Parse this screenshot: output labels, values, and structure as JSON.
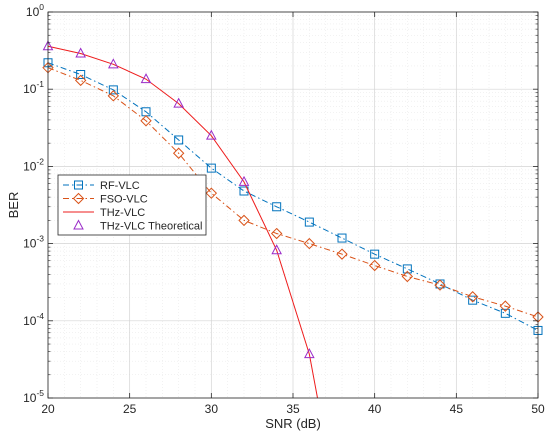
{
  "chart_data": {
    "type": "line",
    "xlabel": "SNR (dB)",
    "ylabel": "BER",
    "xlim": [
      20,
      50
    ],
    "ylim": [
      1e-05,
      1
    ],
    "yscale": "log",
    "grid": true,
    "legend_position": "left",
    "x_ticks": [
      "20",
      "25",
      "30",
      "35",
      "40",
      "45",
      "50"
    ],
    "y_ticks": [
      {
        "base": "10",
        "exp": "0"
      },
      {
        "base": "10",
        "exp": "-1"
      },
      {
        "base": "10",
        "exp": "-2"
      },
      {
        "base": "10",
        "exp": "-3"
      },
      {
        "base": "10",
        "exp": "-4"
      },
      {
        "base": "10",
        "exp": "-5"
      }
    ],
    "series": [
      {
        "name": "RF-VLC",
        "color": "#0072BD",
        "marker": "square",
        "dash": "dashdot",
        "x": [
          20,
          22,
          24,
          26,
          28,
          30,
          32,
          34,
          36,
          38,
          40,
          42,
          44,
          46,
          48,
          50
        ],
        "y": [
          0.22,
          0.155,
          0.098,
          0.051,
          0.022,
          0.0095,
          0.0048,
          0.003,
          0.0019,
          0.00118,
          0.00073,
          0.00047,
          0.0003,
          0.000185,
          0.000125,
          7.5e-05
        ]
      },
      {
        "name": "FSO-VLC",
        "color": "#D95319",
        "marker": "diamond",
        "dash": "dashdot",
        "x": [
          20,
          22,
          24,
          26,
          28,
          30,
          32,
          34,
          36,
          38,
          40,
          42,
          44,
          46,
          48,
          50
        ],
        "y": [
          0.19,
          0.13,
          0.082,
          0.039,
          0.0148,
          0.0045,
          0.002,
          0.00135,
          0.001,
          0.00073,
          0.00052,
          0.000375,
          0.00029,
          0.000205,
          0.000155,
          0.000112
        ]
      },
      {
        "name": "THz-VLC",
        "color": "#EE1C1C",
        "marker": "none",
        "dash": "solid",
        "x": [
          20,
          22,
          24,
          26,
          28,
          30,
          32,
          34,
          36,
          36.5
        ],
        "y": [
          0.36,
          0.29,
          0.21,
          0.135,
          0.065,
          0.025,
          0.0063,
          0.00082,
          3.7e-05,
          1e-05
        ]
      },
      {
        "name": "THz-VLC Theoretical",
        "color": "#9A2BC8",
        "marker": "triangle",
        "dash": "none",
        "x": [
          20,
          22,
          24,
          26,
          28,
          30,
          32,
          34,
          36
        ],
        "y": [
          0.36,
          0.29,
          0.21,
          0.135,
          0.065,
          0.025,
          0.0063,
          0.00082,
          3.7e-05
        ]
      }
    ]
  }
}
